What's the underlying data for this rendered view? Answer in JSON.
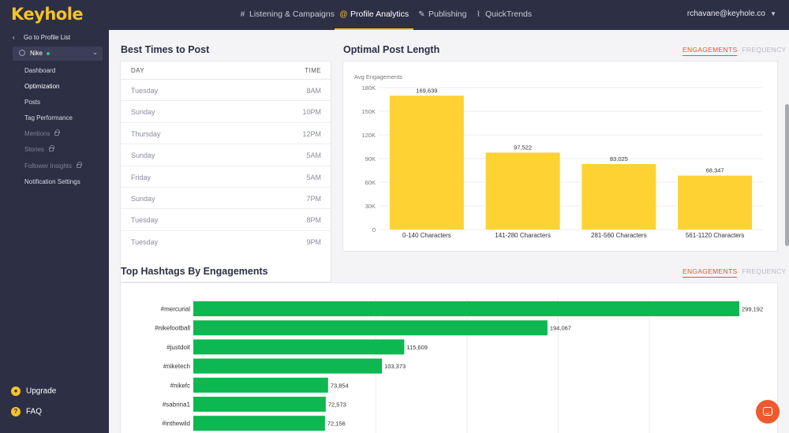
{
  "app": {
    "logo_text": "Keyhole",
    "brand_color": "#f6c22b",
    "accent_color": "#e8542d",
    "nav": [
      {
        "label": "Listening & Campaigns",
        "icon": "hash-icon",
        "active": false
      },
      {
        "label": "Profile Analytics",
        "icon": "at-icon",
        "active": true
      },
      {
        "label": "Publishing",
        "icon": "pencil-icon",
        "active": false
      },
      {
        "label": "QuickTrends",
        "icon": "trend-chart-icon",
        "active": false
      }
    ],
    "user_email": "rchavane@keyhole.co"
  },
  "sidebar": {
    "back_label": "Go to Profile List",
    "profile_name": "Nike",
    "items": [
      {
        "label": "Dashboard",
        "locked": false,
        "active": false
      },
      {
        "label": "Optimization",
        "locked": false,
        "active": true
      },
      {
        "label": "Posts",
        "locked": false,
        "active": false
      },
      {
        "label": "Tag Performance",
        "locked": false,
        "active": false
      },
      {
        "label": "Mentions",
        "locked": true,
        "active": false
      },
      {
        "label": "Stories",
        "locked": true,
        "active": false
      },
      {
        "label": "Follower Insights",
        "locked": true,
        "active": false
      },
      {
        "label": "Notification Settings",
        "locked": false,
        "active": false
      }
    ],
    "upgrade_label": "Upgrade",
    "faq_label": "FAQ"
  },
  "best_times": {
    "title": "Best Times to Post",
    "col_day": "DAY",
    "col_time": "TIME",
    "rows": [
      {
        "day": "Tuesday",
        "time": "8AM"
      },
      {
        "day": "Sunday",
        "time": "10PM"
      },
      {
        "day": "Thursday",
        "time": "12PM"
      },
      {
        "day": "Sunday",
        "time": "5AM"
      },
      {
        "day": "Friday",
        "time": "5AM"
      },
      {
        "day": "Sunday",
        "time": "7PM"
      },
      {
        "day": "Tuesday",
        "time": "8PM"
      },
      {
        "day": "Tuesday",
        "time": "9PM"
      }
    ]
  },
  "post_length": {
    "title": "Optimal Post Length",
    "toggle_on": "ENGAGEMENTS",
    "toggle_off": "FREQUENCY"
  },
  "hashtags": {
    "title": "Top Hashtags By Engagements",
    "toggle_on": "ENGAGEMENTS",
    "toggle_off": "FREQUENCY"
  },
  "chart_data": [
    {
      "type": "bar",
      "orientation": "vertical",
      "ylabel": "Avg Engagements",
      "categories": [
        "0-140 Characters",
        "141-280 Characters",
        "281-560 Characters",
        "561-1120 Characters"
      ],
      "values": [
        169639,
        97522,
        83025,
        68347
      ],
      "value_labels": [
        "169,639",
        "97,522",
        "83,025",
        "68,347"
      ],
      "yticks": [
        "0",
        "30K",
        "60K",
        "90K",
        "120K",
        "150K",
        "180K"
      ],
      "ylim": [
        0,
        180000
      ],
      "color": "#fdd232"
    },
    {
      "type": "bar",
      "orientation": "horizontal",
      "categories": [
        "#mercurial",
        "#nikefootball",
        "#justdoit",
        "#niketech",
        "#nikefc",
        "#sabrina1",
        "#inthewild"
      ],
      "values": [
        299192,
        194067,
        115609,
        103373,
        73854,
        72573,
        72156
      ],
      "value_labels": [
        "299,192",
        "194,067",
        "115,609",
        "103,373",
        "73,854",
        "72,573",
        "72,156"
      ],
      "color": "#0cb84f"
    }
  ]
}
